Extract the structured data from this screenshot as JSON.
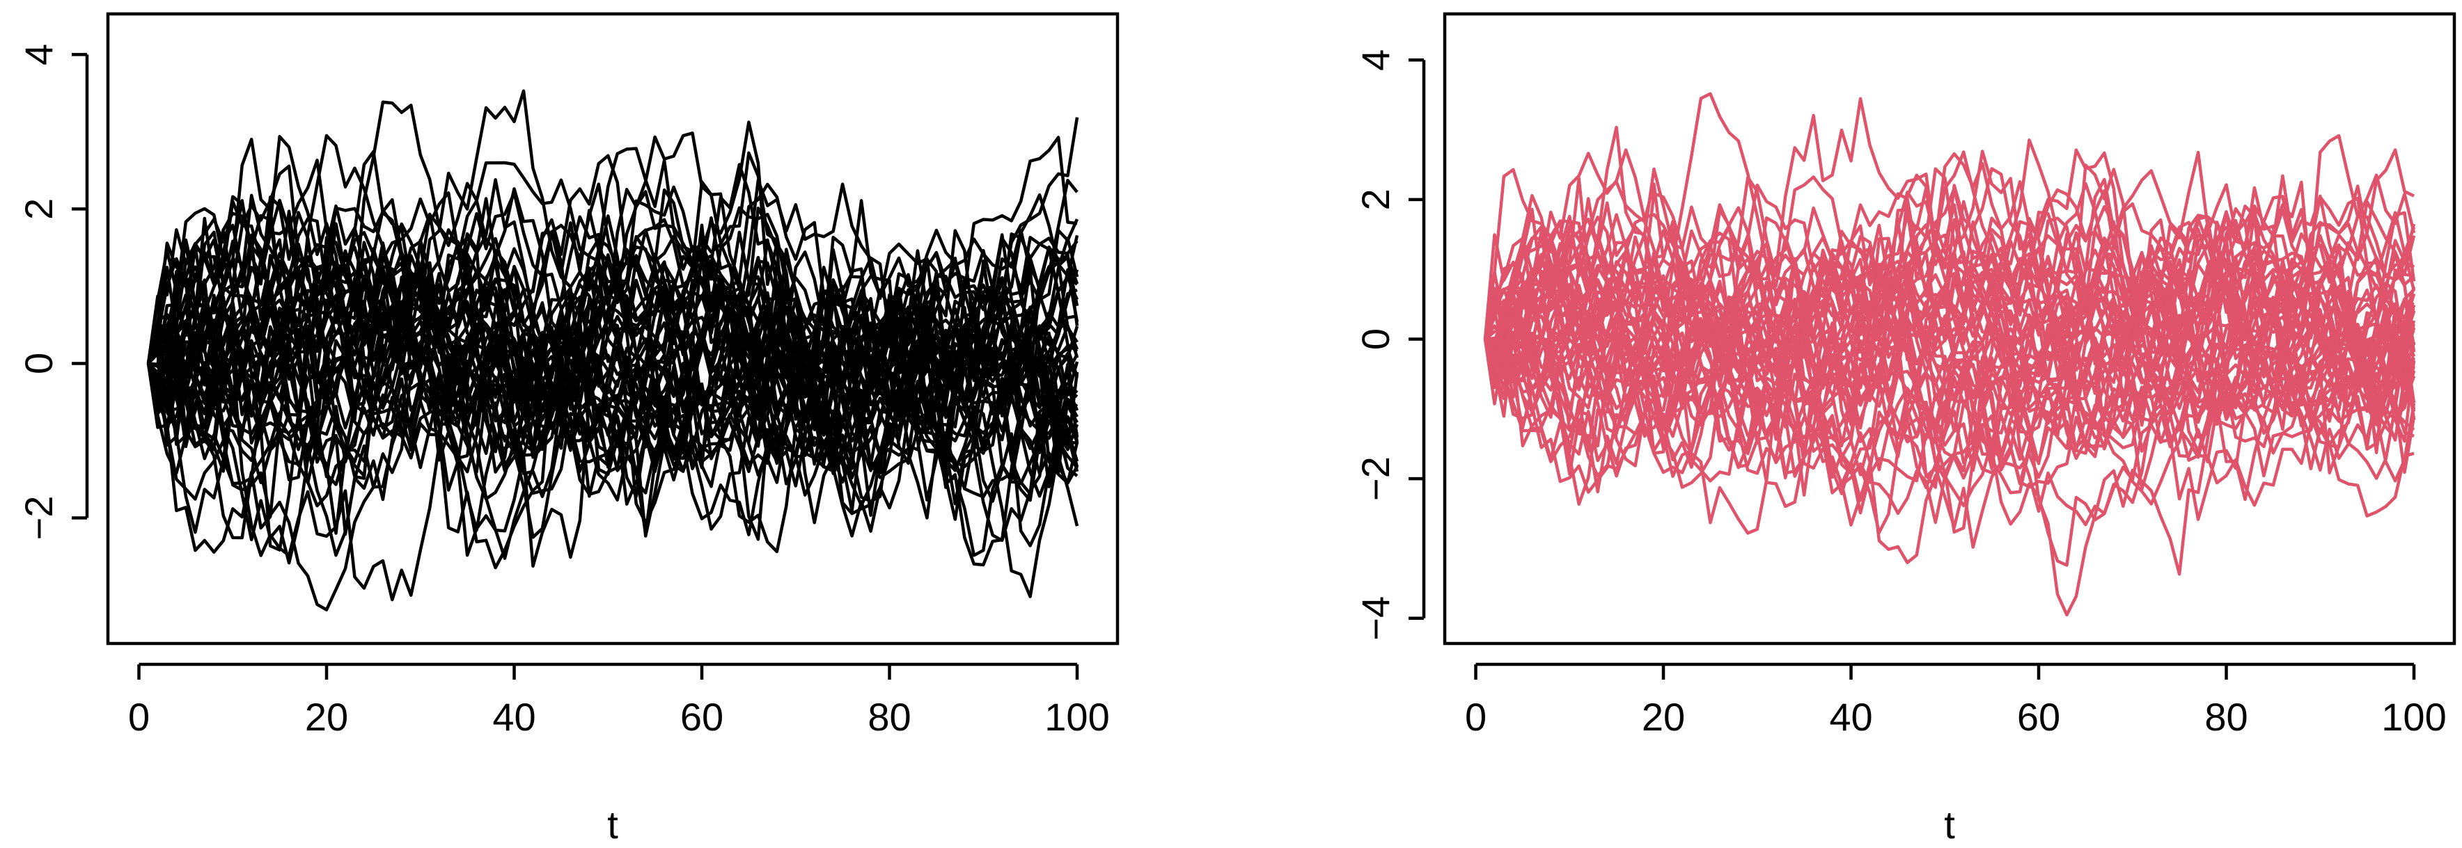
{
  "chart_data": [
    {
      "type": "line",
      "title": "",
      "xlabel": "t",
      "ylabel": "",
      "xlim": [
        1,
        100
      ],
      "ylim": [
        -3.3,
        4.2
      ],
      "x_ticks": [
        0,
        20,
        40,
        60,
        80,
        100
      ],
      "y_ticks": [
        -2,
        0,
        2,
        4
      ],
      "line_color": "#000000",
      "grid": false,
      "legend": "none",
      "n_series": 50,
      "n_points": 100,
      "series_description_seed": 12345
    },
    {
      "type": "line",
      "title": "",
      "xlabel": "t",
      "ylabel": "",
      "xlim": [
        1,
        100
      ],
      "ylim": [
        -4,
        4.3
      ],
      "x_ticks": [
        0,
        20,
        40,
        60,
        80,
        100
      ],
      "y_ticks": [
        -4,
        -2,
        0,
        2,
        4
      ],
      "line_color": "#DF536B",
      "grid": false,
      "legend": "none",
      "n_series": 50,
      "n_points": 100,
      "series_description_seed": 67890
    }
  ]
}
